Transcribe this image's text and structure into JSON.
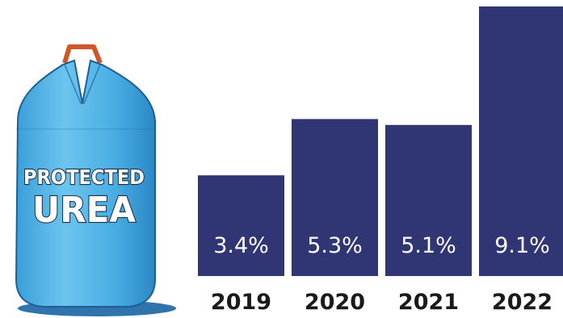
{
  "bag": {
    "line1": "PROTECTED",
    "line2": "UREA",
    "colors": {
      "body": "#4fb3e6",
      "dark": "#2a86c4",
      "handle": "#d0562a",
      "shadow": "#2f74ad"
    }
  },
  "chart_data": {
    "type": "bar",
    "categories": [
      "2019",
      "2020",
      "2021",
      "2022"
    ],
    "values": [
      3.4,
      5.3,
      5.1,
      9.1
    ],
    "value_labels": [
      "3.4%",
      "5.3%",
      "5.1%",
      "9.1%"
    ],
    "unit": "%",
    "ylim": [
      0,
      9.1
    ],
    "grid": false,
    "bar_color": "#2f3673",
    "title": "",
    "xlabel": "",
    "ylabel": ""
  }
}
